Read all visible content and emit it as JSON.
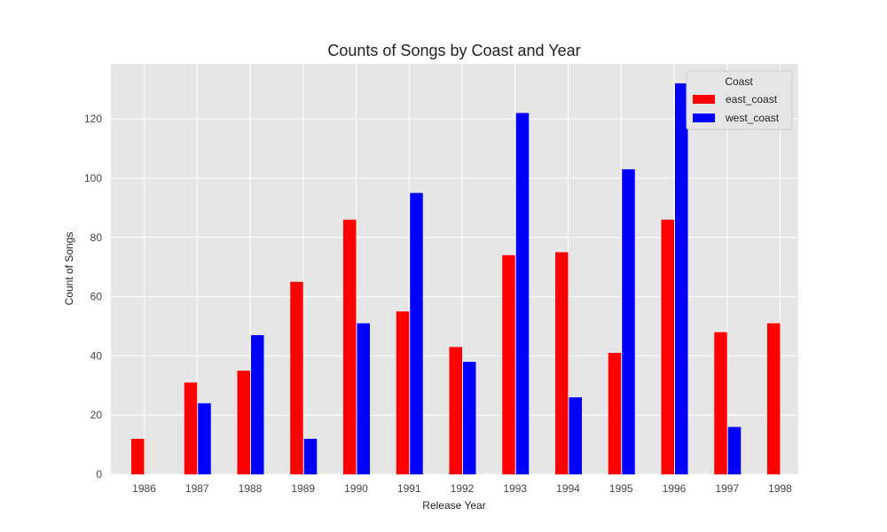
{
  "chart_data": {
    "type": "bar",
    "title": "Counts of Songs by Coast and Year",
    "xlabel": "Release Year",
    "ylabel": "Count of Songs",
    "categories": [
      "1986",
      "1987",
      "1988",
      "1989",
      "1990",
      "1991",
      "1992",
      "1993",
      "1994",
      "1995",
      "1996",
      "1997",
      "1998"
    ],
    "series": [
      {
        "name": "east_coast",
        "color": "#ff0000",
        "values": [
          12,
          31,
          35,
          65,
          86,
          55,
          43,
          74,
          75,
          41,
          86,
          48,
          51
        ]
      },
      {
        "name": "west_coast",
        "color": "#0000ff",
        "values": [
          0,
          24,
          47,
          12,
          51,
          95,
          38,
          122,
          26,
          103,
          132,
          16,
          0
        ]
      }
    ],
    "ylim": [
      0,
      138.6
    ],
    "yticks": [
      0,
      20,
      40,
      60,
      80,
      100,
      120
    ],
    "grid": true,
    "legend": {
      "title": "Coast",
      "placement": "top-right"
    }
  }
}
